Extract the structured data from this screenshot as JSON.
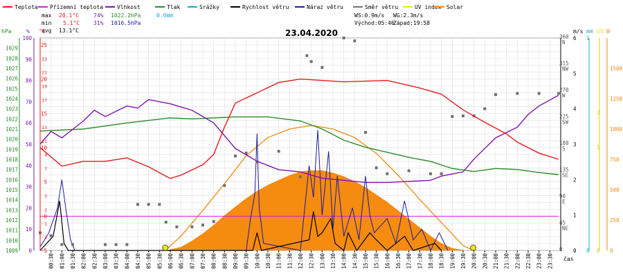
{
  "legend": [
    {
      "label": "Teplota",
      "color": "#e8161c"
    },
    {
      "label": "Přízemní teplota",
      "color": "#cc22cc"
    },
    {
      "label": "Vlhkost",
      "color": "#7a14aa"
    },
    {
      "label": "Tlak",
      "color": "#2a8a2a"
    },
    {
      "label": "Srážky",
      "color": "#18a6d0"
    },
    {
      "label": "Rychlost větru",
      "color": "#000000"
    },
    {
      "label": "Náraz větru",
      "color": "#1a1a9a"
    },
    {
      "label": "Směr větru",
      "color": "#707070"
    },
    {
      "label": "UV index",
      "color": "#e8e812"
    },
    {
      "label": "Solar",
      "color": "#f08a10"
    }
  ],
  "stats": {
    "max": {
      "label": "max",
      "temp": "20.1°C",
      "hum": "74%",
      "pres": "1022.2hPa",
      "rain": "0.0mm"
    },
    "min": {
      "label": "min",
      "temp": "5.1°C",
      "hum": "31%",
      "pres": "1016.5hPa"
    },
    "avg": {
      "label": "avg",
      "temp": "13.1°C"
    }
  },
  "info": {
    "ws": "WS:0.9m/s",
    "wg": "WG:2.3m/s",
    "sunrise": "Východ:05:46",
    "sunset": "Západ:19:58"
  },
  "title": "23.04.2020",
  "axes": {
    "hpa": {
      "unit": "hPa",
      "ticks": [
        "1029",
        "1028",
        "1027",
        "1026",
        "1025",
        "1024",
        "1023",
        "1022",
        "1021",
        "1020",
        "1019",
        "1018",
        "1017",
        "1016",
        "1015",
        "1014",
        "1013",
        "1012",
        "1011",
        "1010",
        "1009"
      ]
    },
    "pct": {
      "unit": "%",
      "ticks": [
        "100",
        "90",
        "80",
        "70",
        "60",
        "50",
        "40",
        "30",
        "20",
        "10",
        "0"
      ]
    },
    "degc": {
      "unit": "°C",
      "ticks": [
        "25",
        "20",
        "15",
        "10",
        "5",
        "0",
        "-5"
      ],
      "extra_ticks": [
        "23",
        "21",
        "19",
        "17",
        "13",
        "11",
        "9",
        "7",
        "3",
        "1",
        "-1",
        "-3"
      ]
    },
    "ms": {
      "unit": "m/s",
      "ticks": [
        "6",
        "5",
        "4",
        "3",
        "2",
        "1",
        "0"
      ]
    },
    "dir": {
      "ticks": [
        {
          "deg": "360",
          "card": "N"
        },
        {
          "deg": "315",
          "card": "NW"
        },
        {
          "deg": "270",
          "card": "W"
        },
        {
          "deg": "225",
          "card": "SW"
        },
        {
          "deg": "180",
          "card": "S"
        },
        {
          "deg": "135",
          "card": "SE"
        },
        {
          "deg": "90",
          "card": "E"
        },
        {
          "deg": "45",
          "card": "NE"
        },
        {
          "deg": "0",
          "card": ""
        }
      ]
    },
    "mm": {
      "unit": "mm",
      "ticks": [
        "1",
        "0"
      ]
    },
    "uv": {
      "unit": "UV",
      "ticks": [
        "2",
        "1",
        "0"
      ]
    },
    "w": {
      "unit": "W",
      "ticks": [
        "1500",
        "1250",
        "1000",
        "750",
        "500",
        "250",
        "0"
      ]
    },
    "time": {
      "unit": "čas",
      "ticks": [
        "00:30",
        "01:00",
        "01:30",
        "02:00",
        "02:30",
        "03:00",
        "03:30",
        "04:00",
        "04:30",
        "05:00",
        "05:30",
        "06:00",
        "06:30",
        "07:00",
        "07:30",
        "08:00",
        "08:30",
        "09:00",
        "09:30",
        "10:00",
        "10:30",
        "11:00",
        "11:30",
        "12:00",
        "12:30",
        "13:00",
        "13:30",
        "14:00",
        "14:30",
        "15:00",
        "15:30",
        "16:00",
        "16:30",
        "17:00",
        "17:30",
        "18:00",
        "18:30",
        "19:00",
        "19:30",
        "20:00",
        "20:30",
        "21:00",
        "21:30",
        "22:00",
        "22:30",
        "23:00",
        "23:30"
      ]
    }
  },
  "chart_data": {
    "type": "line",
    "title": "23.04.2020",
    "x_unit": "hours",
    "series": [
      {
        "name": "Teplota",
        "unit": "°C",
        "color": "#e8161c",
        "points": [
          [
            0,
            10
          ],
          [
            1,
            7.3
          ],
          [
            2,
            8
          ],
          [
            3,
            8
          ],
          [
            4,
            8.5
          ],
          [
            5,
            7.2
          ],
          [
            6,
            5.5
          ],
          [
            6.5,
            6
          ],
          [
            7.5,
            7.5
          ],
          [
            8,
            9
          ],
          [
            8.5,
            13
          ],
          [
            9,
            16.5
          ],
          [
            10,
            18
          ],
          [
            11,
            19.5
          ],
          [
            12,
            20
          ],
          [
            14,
            19.6
          ],
          [
            16,
            19.8
          ],
          [
            17.5,
            18.7
          ],
          [
            18.5,
            17.8
          ],
          [
            19.5,
            15.5
          ],
          [
            20.5,
            13.7
          ],
          [
            21.5,
            12
          ],
          [
            22,
            10.8
          ],
          [
            23,
            9.2
          ],
          [
            23.9,
            8.3
          ]
        ]
      },
      {
        "name": "Vlhkost",
        "unit": "%",
        "color": "#7a14aa",
        "points": [
          [
            0,
            50
          ],
          [
            0.5,
            56
          ],
          [
            1,
            53
          ],
          [
            2,
            61
          ],
          [
            2.5,
            66
          ],
          [
            3,
            63
          ],
          [
            4,
            68
          ],
          [
            4.5,
            67
          ],
          [
            5,
            71
          ],
          [
            6,
            69
          ],
          [
            7,
            66
          ],
          [
            8,
            60
          ],
          [
            9,
            48
          ],
          [
            10,
            42
          ],
          [
            11,
            38
          ],
          [
            12,
            37
          ],
          [
            13,
            34
          ],
          [
            14,
            33
          ],
          [
            15,
            32
          ],
          [
            16,
            32
          ],
          [
            18,
            33
          ],
          [
            18.5,
            35
          ],
          [
            19.5,
            37
          ],
          [
            20,
            43
          ],
          [
            21,
            53
          ],
          [
            22,
            58
          ],
          [
            22.5,
            64
          ],
          [
            23,
            68
          ],
          [
            23.9,
            73
          ]
        ]
      },
      {
        "name": "Tlak",
        "unit": "hPa",
        "color": "#2a8a2a",
        "points": [
          [
            0,
            1020.8
          ],
          [
            2,
            1021
          ],
          [
            4,
            1021.6
          ],
          [
            6,
            1022.1
          ],
          [
            7,
            1022
          ],
          [
            8,
            1022.1
          ],
          [
            9,
            1022.2
          ],
          [
            10.5,
            1022.2
          ],
          [
            12,
            1021.8
          ],
          [
            13,
            1021
          ],
          [
            14,
            1019.9
          ],
          [
            15,
            1019.2
          ],
          [
            16,
            1018.7
          ],
          [
            17,
            1018.2
          ],
          [
            18,
            1017.8
          ],
          [
            19,
            1017.1
          ],
          [
            20,
            1016.8
          ],
          [
            21,
            1017.1
          ],
          [
            22,
            1017
          ],
          [
            23,
            1016.7
          ],
          [
            23.9,
            1016.5
          ]
        ]
      },
      {
        "name": "Přízemní teplota",
        "unit": "°C",
        "color": "#cc22cc",
        "points": [
          [
            0,
            0
          ],
          [
            23.9,
            0
          ]
        ]
      },
      {
        "name": "Rychlost větru",
        "unit": "m/s",
        "color": "#000000",
        "points": [
          [
            0,
            0
          ],
          [
            0.6,
            0.4
          ],
          [
            0.9,
            1.4
          ],
          [
            1.1,
            0.2
          ],
          [
            1.3,
            0
          ],
          [
            9.8,
            0
          ],
          [
            10.0,
            0.5
          ],
          [
            10.2,
            0
          ],
          [
            12.4,
            0.3
          ],
          [
            12.6,
            1.1
          ],
          [
            12.8,
            0.4
          ],
          [
            13.0,
            0.5
          ],
          [
            13.4,
            0.9
          ],
          [
            13.6,
            0.2
          ],
          [
            14.0,
            0
          ],
          [
            14.2,
            0.5
          ],
          [
            14.6,
            0
          ],
          [
            15.2,
            0.5
          ],
          [
            15.5,
            0.3
          ],
          [
            16.0,
            0
          ],
          [
            16.8,
            0.4
          ],
          [
            17.2,
            0
          ],
          [
            18.2,
            0.2
          ],
          [
            18.5,
            0
          ]
        ]
      },
      {
        "name": "Náraz větru",
        "unit": "m/s",
        "color": "#1a1a9a",
        "points": [
          [
            0,
            0.1
          ],
          [
            0.4,
            0.5
          ],
          [
            0.8,
            1.2
          ],
          [
            1.0,
            2.0
          ],
          [
            1.2,
            1.1
          ],
          [
            1.4,
            0.3
          ],
          [
            1.6,
            0
          ],
          [
            9.5,
            0
          ],
          [
            9.7,
            0.9
          ],
          [
            9.9,
            1.6
          ],
          [
            10.0,
            3.3
          ],
          [
            10.1,
            1.2
          ],
          [
            10.3,
            0.2
          ],
          [
            12.0,
            0
          ],
          [
            12.2,
            1.2
          ],
          [
            12.4,
            2.4
          ],
          [
            12.6,
            1.5
          ],
          [
            12.8,
            3.4
          ],
          [
            13.0,
            1.0
          ],
          [
            13.3,
            2.8
          ],
          [
            13.5,
            0.6
          ],
          [
            13.7,
            2.1
          ],
          [
            14.0,
            0.4
          ],
          [
            14.4,
            1.2
          ],
          [
            14.7,
            0.3
          ],
          [
            15.0,
            2.1
          ],
          [
            15.2,
            1.0
          ],
          [
            15.4,
            0.5
          ],
          [
            16.0,
            0.9
          ],
          [
            16.4,
            0.2
          ],
          [
            16.8,
            1.4
          ],
          [
            17.2,
            0.3
          ],
          [
            17.6,
            0.6
          ],
          [
            18.0,
            0
          ],
          [
            18.4,
            0.5
          ],
          [
            18.8,
            0
          ]
        ]
      },
      {
        "name": "Solar",
        "unit": "W",
        "color": "#f08a10",
        "points": [
          [
            5.8,
            0
          ],
          [
            6.5,
            30
          ],
          [
            7,
            80
          ],
          [
            7.5,
            140
          ],
          [
            8,
            210
          ],
          [
            8.5,
            290
          ],
          [
            9,
            360
          ],
          [
            9.5,
            430
          ],
          [
            10,
            490
          ],
          [
            10.5,
            540
          ],
          [
            11,
            580
          ],
          [
            11.5,
            620
          ],
          [
            12,
            650
          ],
          [
            12.5,
            660
          ],
          [
            13,
            660
          ],
          [
            13.5,
            640
          ],
          [
            14,
            610
          ],
          [
            14.5,
            570
          ],
          [
            15,
            520
          ],
          [
            15.5,
            460
          ],
          [
            16,
            400
          ],
          [
            16.5,
            330
          ],
          [
            17,
            260
          ],
          [
            17.5,
            190
          ],
          [
            18,
            120
          ],
          [
            18.5,
            60
          ],
          [
            19,
            20
          ],
          [
            19.6,
            0
          ]
        ]
      },
      {
        "name": "Solar (max)",
        "unit": "W",
        "color": "#f08a10",
        "points": [
          [
            5.77,
            0
          ],
          [
            6.5,
            120
          ],
          [
            7.5,
            330
          ],
          [
            8.5,
            550
          ],
          [
            9.5,
            780
          ],
          [
            10.5,
            930
          ],
          [
            11.5,
            1000
          ],
          [
            12.5,
            1030
          ],
          [
            13.5,
            1000
          ],
          [
            14.5,
            930
          ],
          [
            15.5,
            800
          ],
          [
            16.5,
            620
          ],
          [
            17.5,
            420
          ],
          [
            18.5,
            230
          ],
          [
            19.5,
            40
          ],
          [
            19.97,
            0
          ]
        ]
      },
      {
        "name": "Směr větru",
        "unit": "°",
        "color": "#707070",
        "points": [
          [
            0,
            30
          ],
          [
            0.5,
            25
          ],
          [
            1,
            10
          ],
          [
            1.5,
            10
          ],
          [
            3,
            10
          ],
          [
            3.5,
            10
          ],
          [
            4,
            10
          ],
          [
            4.5,
            78
          ],
          [
            5,
            78
          ],
          [
            5.5,
            78
          ],
          [
            5.8,
            48
          ],
          [
            6.3,
            40
          ],
          [
            7,
            40
          ],
          [
            7.5,
            43
          ],
          [
            8,
            49
          ],
          [
            8.5,
            110
          ],
          [
            9,
            160
          ],
          [
            9.5,
            165
          ],
          [
            10,
            150
          ],
          [
            11,
            168
          ],
          [
            12,
            125
          ],
          [
            12.3,
            330
          ],
          [
            12.5,
            320
          ],
          [
            13,
            310
          ],
          [
            14,
            360
          ],
          [
            14.5,
            355
          ],
          [
            15,
            200
          ],
          [
            15.5,
            140
          ],
          [
            16,
            130
          ],
          [
            17,
            135
          ],
          [
            18,
            130
          ],
          [
            18.5,
            130
          ],
          [
            19,
            227
          ],
          [
            19.5,
            228
          ],
          [
            20,
            228
          ],
          [
            20.5,
            240
          ],
          [
            21,
            264
          ],
          [
            22,
            266
          ],
          [
            23,
            266
          ],
          [
            23.9,
            266
          ]
        ]
      }
    ],
    "markers": [
      {
        "name": "Východ",
        "x": 5.77
      },
      {
        "name": "Západ",
        "x": 19.97
      }
    ],
    "xlim": [
      0,
      24
    ],
    "ylim": {
      "hPa": [
        1009,
        1030
      ],
      "°C": [
        -5,
        26
      ],
      "%": [
        0,
        100
      ],
      "m/s": [
        0,
        6
      ],
      "W": [
        0,
        1750
      ],
      "°": [
        0,
        360
      ]
    }
  }
}
